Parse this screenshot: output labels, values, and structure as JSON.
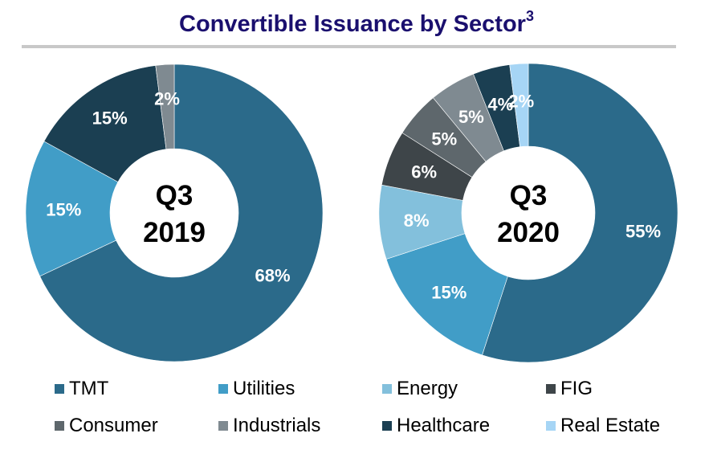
{
  "title": "Convertible Issuance by Sector",
  "title_footnote": "3",
  "chart_data": [
    {
      "type": "pie",
      "variant": "donut",
      "center_label": [
        "Q3",
        "2019"
      ],
      "categories": [
        "TMT",
        "Utilities",
        "Healthcare",
        "Industrials"
      ],
      "values": [
        68,
        15,
        15,
        2
      ],
      "labels": [
        "68%",
        "15%",
        "15%",
        "2%"
      ],
      "colors": [
        "#2b6a8a",
        "#419dc7",
        "#1b3f52",
        "#7f8a91"
      ],
      "start": "top",
      "direction": "clockwise"
    },
    {
      "type": "pie",
      "variant": "donut",
      "center_label": [
        "Q3",
        "2020"
      ],
      "categories": [
        "TMT",
        "Utilities",
        "Energy",
        "FIG",
        "Consumer",
        "Industrials",
        "Healthcare",
        "Real Estate"
      ],
      "values": [
        55,
        15,
        8,
        6,
        5,
        5,
        4,
        2
      ],
      "labels": [
        "55%",
        "15%",
        "8%",
        "6%",
        "5%",
        "5%",
        "4%",
        "2%"
      ],
      "colors": [
        "#2b6a8a",
        "#419dc7",
        "#83c0dc",
        "#3e4549",
        "#5e676c",
        "#7f8a91",
        "#1b3f52",
        "#a6d5f5"
      ],
      "start": "top",
      "direction": "clockwise"
    }
  ],
  "legend": {
    "placement": "bottom",
    "items": [
      {
        "label": "TMT",
        "color": "#2b6a8a"
      },
      {
        "label": "Utilities",
        "color": "#419dc7"
      },
      {
        "label": "Energy",
        "color": "#83c0dc"
      },
      {
        "label": "FIG",
        "color": "#3e4549"
      },
      {
        "label": "Consumer",
        "color": "#5e676c"
      },
      {
        "label": "Industrials",
        "color": "#7f8a91"
      },
      {
        "label": "Healthcare",
        "color": "#1b3f52"
      },
      {
        "label": "Real Estate",
        "color": "#a6d5f5"
      }
    ]
  }
}
